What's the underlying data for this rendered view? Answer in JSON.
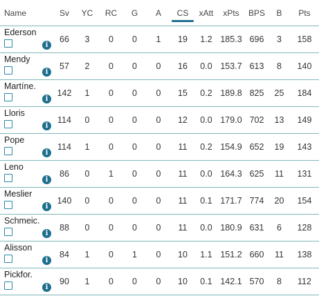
{
  "columns": [
    "Name",
    "Sv",
    "YC",
    "RC",
    "G",
    "A",
    "CS",
    "xAtt",
    "xPts",
    "BPS",
    "B",
    "Pts"
  ],
  "sorted_column": "CS",
  "accent_color": "#1e6f8f",
  "row_divider_color": "#7fb8b8",
  "info_icon_glyph": "i",
  "rows": [
    {
      "name": "Ederson",
      "values": [
        "66",
        "3",
        "0",
        "0",
        "1",
        "19",
        "1.2",
        "185.3",
        "696",
        "3",
        "158"
      ]
    },
    {
      "name": "Mendy",
      "values": [
        "57",
        "2",
        "0",
        "0",
        "0",
        "16",
        "0.0",
        "153.7",
        "613",
        "8",
        "140"
      ]
    },
    {
      "name": "Martíne.",
      "values": [
        "142",
        "1",
        "0",
        "0",
        "0",
        "15",
        "0.2",
        "189.8",
        "825",
        "25",
        "184"
      ]
    },
    {
      "name": "Lloris",
      "values": [
        "114",
        "0",
        "0",
        "0",
        "0",
        "12",
        "0.0",
        "179.0",
        "702",
        "13",
        "149"
      ]
    },
    {
      "name": "Pope",
      "values": [
        "114",
        "1",
        "0",
        "0",
        "0",
        "11",
        "0.2",
        "154.9",
        "652",
        "19",
        "143"
      ]
    },
    {
      "name": "Leno",
      "values": [
        "86",
        "0",
        "1",
        "0",
        "0",
        "11",
        "0.0",
        "164.3",
        "625",
        "11",
        "131"
      ]
    },
    {
      "name": "Meslier",
      "values": [
        "140",
        "0",
        "0",
        "0",
        "0",
        "11",
        "0.1",
        "171.7",
        "774",
        "20",
        "154"
      ]
    },
    {
      "name": "Schmeic.",
      "values": [
        "88",
        "0",
        "0",
        "0",
        "0",
        "11",
        "0.0",
        "180.9",
        "631",
        "6",
        "128"
      ]
    },
    {
      "name": "Alisson",
      "values": [
        "84",
        "1",
        "0",
        "1",
        "0",
        "10",
        "1.1",
        "151.2",
        "660",
        "11",
        "138"
      ]
    },
    {
      "name": "Pickfor.",
      "values": [
        "90",
        "1",
        "0",
        "0",
        "0",
        "10",
        "0.1",
        "142.1",
        "570",
        "8",
        "112"
      ]
    }
  ]
}
